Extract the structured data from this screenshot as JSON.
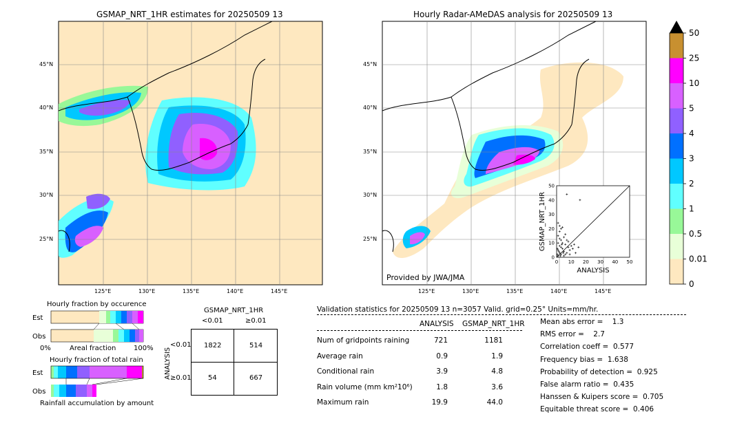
{
  "left_map": {
    "title": "GSMAP_NRT_1HR estimates for 20250509 13",
    "lat_labels": [
      "45°N",
      "40°N",
      "35°N",
      "30°N",
      "25°N"
    ],
    "lon_labels": [
      "125°E",
      "130°E",
      "135°E",
      "140°E",
      "145°E"
    ]
  },
  "right_map": {
    "title": "Hourly Radar-AMeDAS analysis for 20250509 13",
    "lat_labels": [
      "45°N",
      "40°N",
      "35°N",
      "30°N",
      "25°N"
    ],
    "lon_labels": [
      "125°E",
      "130°E",
      "135°E",
      "140°E",
      "145°E"
    ],
    "credit": "Provided by JWA/JMA"
  },
  "colorbar": {
    "levels": [
      "0",
      "0.01",
      "0.5",
      "1",
      "2",
      "3",
      "4",
      "5",
      "10",
      "25",
      "50"
    ],
    "colors": [
      "#fee8c0",
      "#e8ffd8",
      "#98f898",
      "#60ffff",
      "#00c8ff",
      "#0070ff",
      "#9060ff",
      "#d860ff",
      "#ff00ff",
      "#c89030"
    ]
  },
  "fraction_occurrence": {
    "title": "Hourly fraction by occurence",
    "row_labels": [
      "Est",
      "Obs"
    ],
    "axis": {
      "left": "0%",
      "center": "Areal fraction",
      "right": "100%"
    }
  },
  "fraction_total": {
    "title": "Hourly fraction of total rain",
    "row_labels": [
      "Est",
      "Obs"
    ],
    "footer": "Rainfall accumulation by amount"
  },
  "contingency": {
    "title": "GSMAP_NRT_1HR",
    "col_labels": [
      "<0.01",
      "≥0.01"
    ],
    "row_axis": "ANALYSIS",
    "row_labels": [
      "<0.01",
      "≥0.01"
    ],
    "cells": [
      [
        "1822",
        "514"
      ],
      [
        "54",
        "667"
      ]
    ]
  },
  "validation": {
    "header": "Validation statistics for 20250509 13  n=3057 Valid. grid=0.25° Units=mm/hr.",
    "col_analysis": "ANALYSIS",
    "col_gsmap": "GSMAP_NRT_1HR",
    "rows": [
      {
        "label": "Num of gridpoints raining",
        "analysis": "721",
        "gsmap": "1181"
      },
      {
        "label": "Average rain",
        "analysis": "0.9",
        "gsmap": "1.9"
      },
      {
        "label": "Conditional rain",
        "analysis": "3.9",
        "gsmap": "4.8"
      },
      {
        "label": "Rain volume (mm km²10⁶)",
        "analysis": "1.8",
        "gsmap": "3.6"
      },
      {
        "label": "Maximum rain",
        "analysis": "19.9",
        "gsmap": "44.0"
      }
    ],
    "scores": [
      "Mean abs error =    1.3",
      "RMS error =    2.7",
      "Correlation coeff =  0.577",
      "Frequency bias =  1.638",
      "Probability of detection =  0.925",
      "False alarm ratio =  0.435",
      "Hanssen & Kuipers score =  0.705",
      "Equitable threat score =  0.406"
    ]
  },
  "chart_data": {
    "type": "scatter",
    "xlabel": "ANALYSIS",
    "ylabel": "GSMAP_NRT_1HR",
    "xlim": [
      0,
      50
    ],
    "ylim": [
      0,
      50
    ],
    "ticks": [
      "0",
      "10",
      "20",
      "30",
      "40",
      "50"
    ],
    "points": [
      [
        1,
        1
      ],
      [
        2,
        3
      ],
      [
        1,
        5
      ],
      [
        3,
        2
      ],
      [
        4,
        6
      ],
      [
        2,
        8
      ],
      [
        5,
        4
      ],
      [
        6,
        9
      ],
      [
        3,
        12
      ],
      [
        1,
        15
      ],
      [
        2,
        18
      ],
      [
        7,
        3
      ],
      [
        8,
        7
      ],
      [
        4,
        10
      ],
      [
        5,
        14
      ],
      [
        6,
        2
      ],
      [
        9,
        5
      ],
      [
        10,
        8
      ],
      [
        3,
        20
      ],
      [
        2,
        22
      ],
      [
        1,
        10
      ],
      [
        0.5,
        2
      ],
      [
        0.5,
        6
      ],
      [
        1.5,
        4
      ],
      [
        2.5,
        1
      ],
      [
        3.5,
        9
      ],
      [
        4.5,
        3
      ],
      [
        6,
        16
      ],
      [
        7,
        12
      ],
      [
        8,
        11
      ],
      [
        11,
        6
      ],
      [
        12,
        9
      ],
      [
        13,
        3
      ],
      [
        15,
        7
      ],
      [
        4,
        21
      ],
      [
        2,
        13
      ],
      [
        1,
        24
      ],
      [
        7,
        44
      ],
      [
        16,
        40
      ],
      [
        3,
        7
      ],
      [
        5,
        1
      ],
      [
        9,
        2
      ]
    ]
  }
}
